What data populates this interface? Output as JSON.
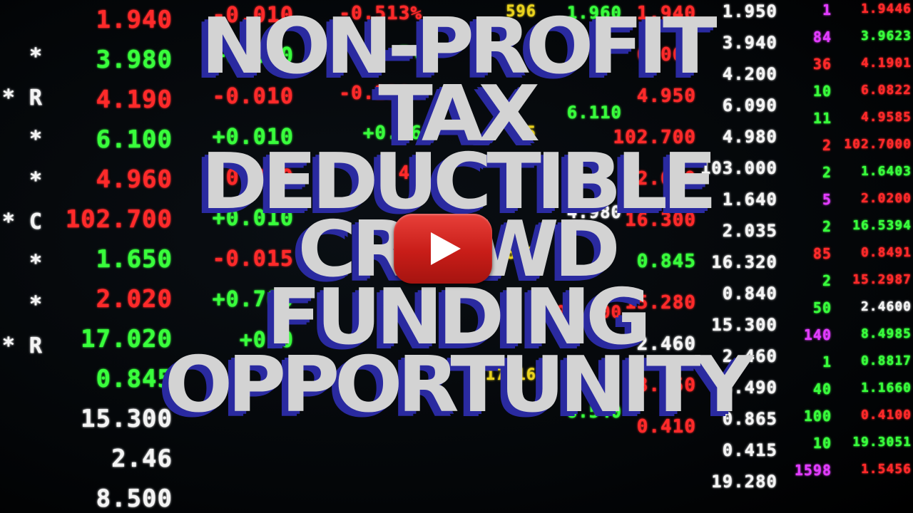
{
  "video": {
    "headline_lines": [
      "NON-PROFIT",
      "TAX",
      "DEDUCTIBLE",
      "CROWD",
      "FUNDING",
      "OPPORTUNITY"
    ],
    "play_icon": "play-icon",
    "play_color": "#d8231d"
  },
  "ticker": {
    "colors": {
      "up": "#39ff3c",
      "down": "#ff2a2a",
      "neutral": "#f4f4f4"
    },
    "col_prefix": [
      "*",
      "* R",
      "*",
      "*",
      "* C",
      "*",
      "*",
      "* R"
    ],
    "col_price": [
      "1.940",
      "3.980",
      "4.190",
      "6.100",
      "4.960",
      "102.700",
      "1.650",
      "2.020",
      "17.020",
      "0.845",
      "15.300",
      "2.46",
      "8.500"
    ],
    "col_change": [
      "-0.010",
      "+0.010",
      "-0.010",
      "+0.010",
      "-0.020",
      "+0.010",
      "-0.015",
      "+0.700",
      "+0.0"
    ],
    "col_pct": [
      "-0.513%",
      "5%",
      "-0.238%",
      "+0.16",
      "-0.40"
    ],
    "col_volume": [
      "596",
      "5",
      "18600",
      "17716"
    ],
    "col_last": [
      "1.960",
      "6.110",
      "4.980",
      "102.700",
      "8.540"
    ],
    "col_bid": [
      "1.940",
      "6.060",
      "4.950",
      "102.700",
      "2.020",
      "16.300",
      "0.845",
      "15.280",
      "2.460",
      "8.450",
      "0.410"
    ],
    "col_ask": [
      "1.950",
      "3.940",
      "4.200",
      "6.090",
      "4.980",
      "103.000",
      "1.640",
      "2.035",
      "16.320",
      "0.840",
      "15.300",
      "2.460",
      "8.490",
      "0.865",
      "0.415",
      "19.280"
    ],
    "col_qty": [
      "1",
      "84",
      "36",
      "10",
      "11",
      "2",
      "2",
      "5",
      "2",
      "85",
      "2",
      "50",
      "140",
      "1",
      "40",
      "100",
      "10",
      "1598"
    ],
    "col_far": [
      "1.9446",
      "3.9623",
      "4.1901",
      "6.0822",
      "4.9585",
      "102.7000",
      "1.6403",
      "2.0200",
      "16.5394",
      "0.8491",
      "15.2987",
      "2.4600",
      "8.4985",
      "0.8817",
      "1.1660",
      "0.4100",
      "19.3051",
      "1.5456"
    ]
  }
}
